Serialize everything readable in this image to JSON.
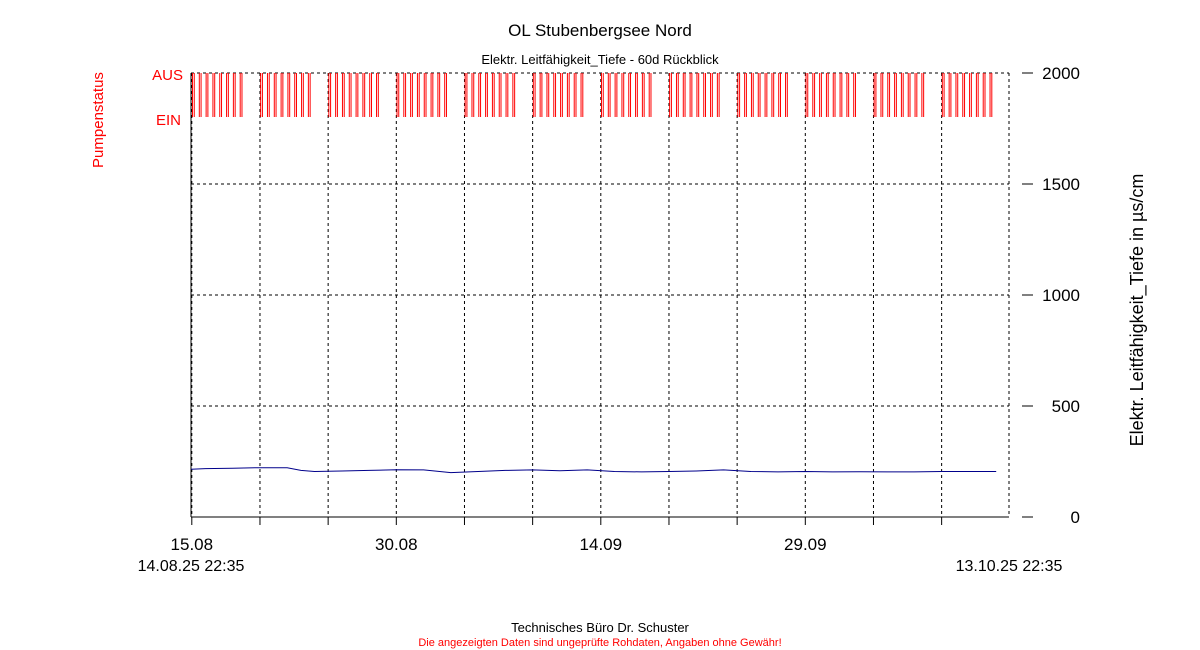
{
  "chart_data": {
    "type": "line",
    "title": "OL Stubenbergsee Nord",
    "subtitle": "Elektr. Leitfähigkeit_Tiefe - 60d Rückblick",
    "ylabel_right": "Elektr. Leitfähigkeit_Tiefe in µs/cm",
    "ylabel_left": "Pumpenstatus",
    "pump_state_labels": [
      "AUS",
      "EIN"
    ],
    "ylim": [
      0,
      2000
    ],
    "yticks": [
      0,
      500,
      1000,
      1500,
      2000
    ],
    "xticks": [
      "15.08",
      "30.08",
      "14.09",
      "29.09"
    ],
    "x_start_label": "14.08.25 22:35",
    "x_end_label": "13.10.25 22:35",
    "x_range": [
      "2025-08-14 22:35",
      "2025-10-13 22:35"
    ],
    "grid": true,
    "colors": {
      "conductivity": "#00008b",
      "pump": "#ff0000",
      "grid": "#000000"
    },
    "series": [
      {
        "x": [
          "2025-08-14",
          "2025-08-16",
          "2025-08-18",
          "2025-08-20",
          "2025-08-22",
          "2025-08-23",
          "2025-08-24",
          "2025-08-26",
          "2025-08-28",
          "2025-08-30",
          "2025-09-01",
          "2025-09-03",
          "2025-09-05",
          "2025-09-07",
          "2025-09-09",
          "2025-09-11",
          "2025-09-13",
          "2025-09-15",
          "2025-09-17",
          "2025-09-19",
          "2025-09-21",
          "2025-09-23",
          "2025-09-25",
          "2025-09-27",
          "2025-09-29",
          "2025-10-01",
          "2025-10-03",
          "2025-10-05",
          "2025-10-07",
          "2025-10-09",
          "2025-10-11",
          "2025-10-13"
        ],
        "values": [
          215,
          218,
          220,
          222,
          222,
          210,
          205,
          207,
          210,
          213,
          212,
          200,
          205,
          210,
          212,
          208,
          212,
          205,
          203,
          205,
          207,
          212,
          205,
          203,
          205,
          203,
          204,
          203,
          203,
          205,
          205,
          205
        ]
      }
    ],
    "pump_cycles_per_day": 2
  },
  "footer": {
    "company": "Technisches Büro Dr. Schuster",
    "disclaimer": "Die angezeigten Daten sind ungeprüfte Rohdaten, Angaben ohne Gewähr!"
  }
}
